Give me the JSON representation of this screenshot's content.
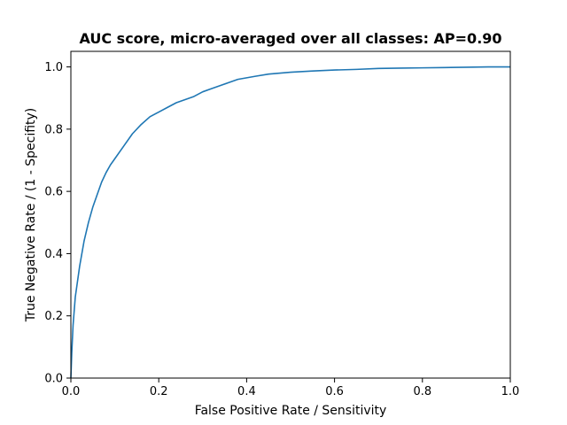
{
  "chart_data": {
    "type": "line",
    "title": "AUC score, micro-averaged over all classes: AP=0.90",
    "xlabel": "False Positive Rate / Sensitivity",
    "ylabel": "True Negative Rate / (1 - Specifity)",
    "xlim": [
      0.0,
      1.0
    ],
    "ylim": [
      0.0,
      1.05
    ],
    "xticks": [
      "0.0",
      "0.2",
      "0.4",
      "0.6",
      "0.8",
      "1.0"
    ],
    "yticks": [
      "0.0",
      "0.2",
      "0.4",
      "0.6",
      "0.8",
      "1.0"
    ],
    "grid": false,
    "series": [
      {
        "color": "#1f77b4",
        "x": [
          0.0,
          0.002,
          0.005,
          0.01,
          0.015,
          0.02,
          0.03,
          0.04,
          0.05,
          0.06,
          0.07,
          0.08,
          0.09,
          0.1,
          0.12,
          0.14,
          0.16,
          0.18,
          0.2,
          0.22,
          0.24,
          0.26,
          0.28,
          0.3,
          0.32,
          0.34,
          0.36,
          0.38,
          0.4,
          0.42,
          0.45,
          0.5,
          0.55,
          0.6,
          0.65,
          0.7,
          0.75,
          0.8,
          0.85,
          0.9,
          0.95,
          1.0
        ],
        "y": [
          0.0,
          0.08,
          0.17,
          0.26,
          0.31,
          0.36,
          0.44,
          0.5,
          0.55,
          0.59,
          0.63,
          0.66,
          0.685,
          0.705,
          0.745,
          0.785,
          0.815,
          0.84,
          0.855,
          0.87,
          0.885,
          0.895,
          0.905,
          0.92,
          0.93,
          0.94,
          0.95,
          0.96,
          0.965,
          0.97,
          0.977,
          0.983,
          0.987,
          0.99,
          0.992,
          0.995,
          0.996,
          0.997,
          0.998,
          0.999,
          1.0,
          1.0
        ]
      }
    ]
  }
}
